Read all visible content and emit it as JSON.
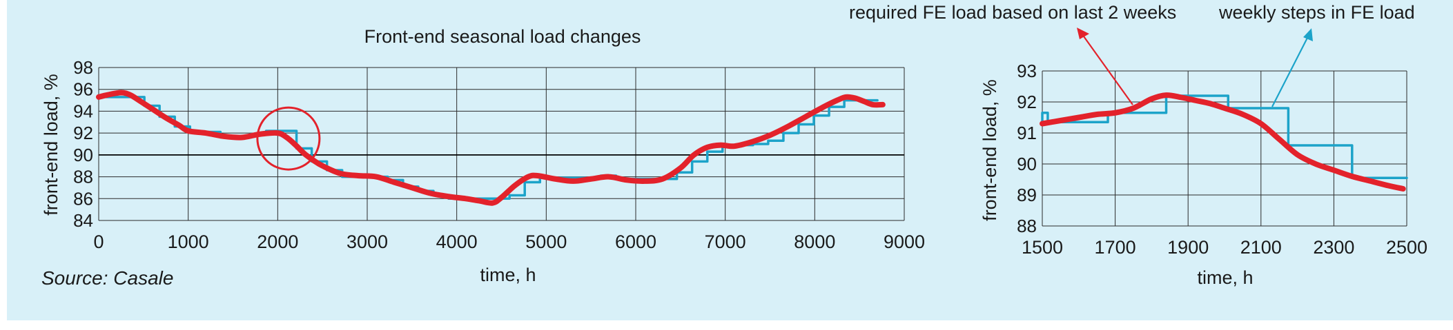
{
  "source_note": "Source: Casale",
  "annotations": {
    "required": "required FE load based on last 2 weeks",
    "weekly": "weekly steps in FE load"
  },
  "colors": {
    "background": "#d8f0f8",
    "actual_line": "#e3222b",
    "step_line": "#1ca3c9",
    "grid": "#222222"
  },
  "chart_data": [
    {
      "type": "line",
      "title": "Front-end seasonal load changes",
      "xlabel": "time, h",
      "ylabel": "front-end load, %",
      "xlim": [
        0,
        9000
      ],
      "ylim": [
        84,
        98
      ],
      "xticks": [
        0,
        1000,
        2000,
        3000,
        4000,
        5000,
        6000,
        7000,
        8000,
        9000
      ],
      "yticks": [
        84,
        86,
        88,
        90,
        92,
        94,
        96,
        98
      ],
      "grid": true,
      "highlight_circle": {
        "x": 2120,
        "y": 91.5
      },
      "series": [
        {
          "style": "smooth-thick",
          "color": "#e3222b",
          "x": [
            0,
            100,
            250,
            350,
            450,
            600,
            750,
            900,
            1000,
            1200,
            1400,
            1600,
            1800,
            2000,
            2100,
            2200,
            2300,
            2400,
            2500,
            2700,
            2900,
            3100,
            3300,
            3500,
            3700,
            3900,
            4100,
            4250,
            4400,
            4500,
            4650,
            4800,
            4900,
            5100,
            5300,
            5500,
            5700,
            5900,
            6100,
            6300,
            6500,
            6650,
            6800,
            6950,
            7100,
            7300,
            7500,
            7700,
            7900,
            8100,
            8250,
            8350,
            8450,
            8550,
            8650,
            8760
          ],
          "y": [
            95.3,
            95.5,
            95.7,
            95.5,
            95.0,
            94.2,
            93.4,
            92.7,
            92.2,
            92.0,
            91.7,
            91.6,
            91.9,
            92.0,
            91.6,
            90.9,
            90.1,
            89.5,
            89.0,
            88.3,
            88.1,
            88.0,
            87.5,
            87.0,
            86.5,
            86.2,
            86.0,
            85.8,
            85.6,
            86.1,
            87.2,
            88.0,
            88.1,
            87.8,
            87.6,
            87.8,
            88.0,
            87.7,
            87.6,
            87.8,
            88.8,
            90.0,
            90.7,
            90.9,
            90.8,
            91.2,
            91.8,
            92.6,
            93.5,
            94.4,
            95.0,
            95.3,
            95.2,
            94.9,
            94.6,
            94.6
          ]
        },
        {
          "style": "step",
          "color": "#1ca3c9",
          "x": [
            0,
            170,
            340,
            510,
            680,
            850,
            1020,
            1190,
            1360,
            1530,
            1700,
            1870,
            2040,
            2210,
            2380,
            2550,
            2720,
            2890,
            3060,
            3230,
            3400,
            3570,
            3740,
            3910,
            4080,
            4250,
            4420,
            4590,
            4760,
            4930,
            5100,
            5270,
            5440,
            5610,
            5780,
            5950,
            6120,
            6290,
            6460,
            6630,
            6800,
            6970,
            7140,
            7310,
            7480,
            7650,
            7820,
            7990,
            8160,
            8330,
            8500,
            8700
          ],
          "y": [
            95.3,
            95.3,
            95.3,
            94.5,
            93.5,
            92.6,
            92.1,
            92.1,
            91.6,
            91.6,
            91.9,
            92.2,
            92.2,
            90.6,
            89.4,
            88.6,
            88.0,
            88.0,
            88.0,
            87.7,
            87.1,
            86.7,
            86.3,
            86.0,
            86.0,
            86.0,
            86.0,
            86.3,
            87.5,
            87.9,
            87.9,
            87.9,
            87.9,
            88.1,
            87.8,
            87.8,
            87.8,
            87.8,
            88.4,
            89.4,
            90.3,
            90.9,
            90.9,
            91.0,
            91.3,
            92.0,
            92.8,
            93.6,
            94.4,
            95.0,
            95.0,
            95.0
          ]
        }
      ]
    },
    {
      "type": "line",
      "xlabel": "time, h",
      "ylabel": "front-end load, %",
      "xlim": [
        1500,
        2500
      ],
      "ylim": [
        88,
        93
      ],
      "xticks": [
        1500,
        1700,
        1900,
        2100,
        2300,
        2500
      ],
      "yticks": [
        88,
        89,
        90,
        91,
        92,
        93
      ],
      "grid": true,
      "series": [
        {
          "style": "smooth-thick",
          "color": "#e3222b",
          "x": [
            1500,
            1550,
            1600,
            1650,
            1700,
            1750,
            1800,
            1840,
            1880,
            1920,
            1960,
            2000,
            2050,
            2100,
            2150,
            2200,
            2250,
            2300,
            2350,
            2400,
            2450,
            2490
          ],
          "y": [
            91.3,
            91.4,
            91.5,
            91.6,
            91.65,
            91.8,
            92.1,
            92.22,
            92.15,
            92.05,
            91.95,
            91.8,
            91.6,
            91.3,
            90.8,
            90.3,
            90.0,
            89.8,
            89.6,
            89.45,
            89.3,
            89.2
          ]
        },
        {
          "style": "step",
          "color": "#1ca3c9",
          "x": [
            1500,
            1500,
            1515,
            1515,
            1680,
            1680,
            1840,
            1840,
            2010,
            2010,
            2175,
            2175,
            2350,
            2350,
            2500
          ],
          "y": [
            91.3,
            91.65,
            91.65,
            91.35,
            91.35,
            91.65,
            91.65,
            92.2,
            92.2,
            91.8,
            91.8,
            90.6,
            90.6,
            89.55,
            89.55
          ],
          "explicit_path": true
        }
      ]
    }
  ]
}
